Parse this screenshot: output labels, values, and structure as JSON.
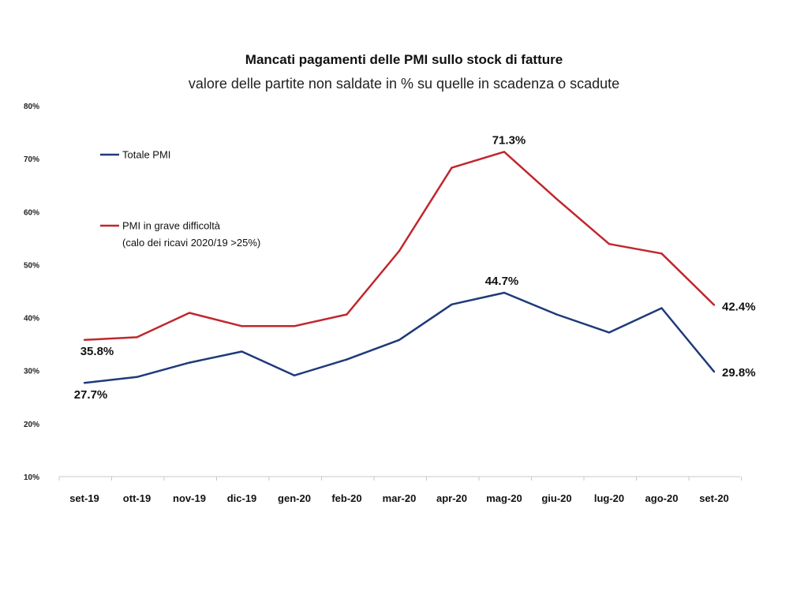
{
  "chart_data": {
    "type": "line",
    "title": "Mancati pagamenti delle PMI sullo stock di fatture",
    "subtitle": "valore delle partite non saldate in % su quelle in scadenza o scadute",
    "categories": [
      "set-19",
      "ott-19",
      "nov-19",
      "dic-19",
      "gen-20",
      "feb-20",
      "mar-20",
      "apr-20",
      "mag-20",
      "giu-20",
      "lug-20",
      "ago-20",
      "set-20"
    ],
    "y_ticks": [
      "10%",
      "20%",
      "30%",
      "40%",
      "50%",
      "60%",
      "70%",
      "80%"
    ],
    "ylim": [
      10,
      80
    ],
    "grid": false,
    "legend_position": "top-left",
    "series": [
      {
        "name": "Totale PMI",
        "color": "#1f3a7a",
        "values": [
          27.7,
          28.8,
          31.5,
          33.6,
          29.1,
          32.1,
          35.8,
          42.5,
          44.7,
          40.6,
          37.2,
          41.8,
          29.8
        ]
      },
      {
        "name": "PMI in grave difficoltà",
        "name_line2": "(calo dei ricavi 2020/19 >25%)",
        "color": "#c0272d",
        "values": [
          35.8,
          36.3,
          40.9,
          38.4,
          38.4,
          40.6,
          52.6,
          68.3,
          71.3,
          62.4,
          53.9,
          52.1,
          42.4
        ]
      }
    ],
    "annotations": [
      {
        "series": 0,
        "index": 0,
        "text": "27.7%"
      },
      {
        "series": 0,
        "index": 8,
        "text": "44.7%"
      },
      {
        "series": 0,
        "index": 12,
        "text": "29.8%"
      },
      {
        "series": 1,
        "index": 0,
        "text": "35.8%"
      },
      {
        "series": 1,
        "index": 8,
        "text": "71.3%"
      },
      {
        "series": 1,
        "index": 12,
        "text": "42.4%"
      }
    ]
  }
}
